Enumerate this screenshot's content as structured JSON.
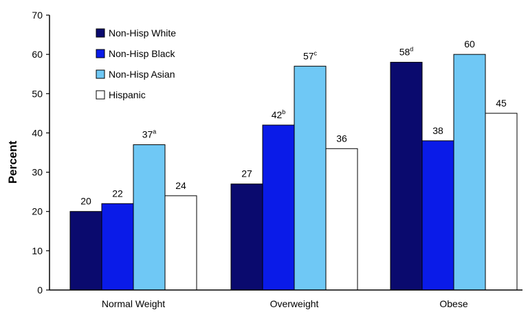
{
  "chart_data": {
    "type": "bar",
    "ylabel": "Percent",
    "ylim": [
      0,
      70
    ],
    "yticks": [
      0,
      10,
      20,
      30,
      40,
      50,
      60,
      70
    ],
    "legend_position": "top-left",
    "categories": [
      "Normal Weight",
      "Overweight",
      "Obese"
    ],
    "series": [
      {
        "name": "Non-Hisp White",
        "color": "#0a0a6e",
        "values": [
          20,
          27,
          58
        ],
        "labels": [
          "20",
          "27",
          "58"
        ],
        "sups": [
          "",
          "",
          "d"
        ]
      },
      {
        "name": "Non-Hisp Black",
        "color": "#0a1be8",
        "values": [
          22,
          42,
          38
        ],
        "labels": [
          "22",
          "42",
          "38"
        ],
        "sups": [
          "",
          "b",
          ""
        ]
      },
      {
        "name": "Non-Hisp Asian",
        "color": "#6fc8f5",
        "values": [
          37,
          57,
          60
        ],
        "labels": [
          "37",
          "57",
          "60"
        ],
        "sups": [
          "a",
          "c",
          ""
        ]
      },
      {
        "name": "Hispanic",
        "color": "#ffffff",
        "values": [
          24,
          36,
          45
        ],
        "labels": [
          "24",
          "36",
          "45"
        ],
        "sups": [
          "",
          "",
          ""
        ]
      }
    ]
  }
}
